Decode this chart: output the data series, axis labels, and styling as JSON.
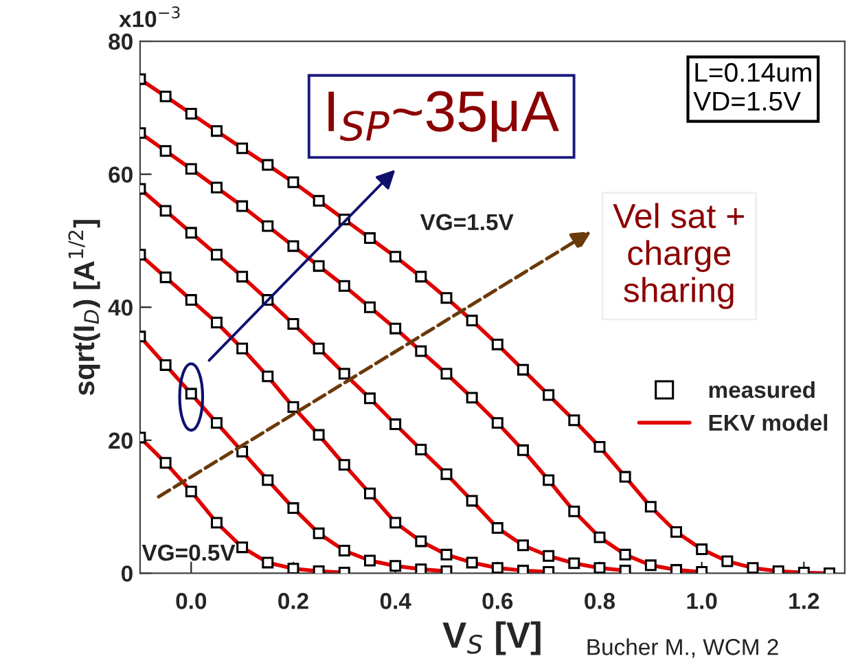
{
  "chart_data": {
    "type": "scatter",
    "xlabel": "V$_{S}$ [V]",
    "ylabel": "sqrt(I$_{D}$) [A$^{1/2}$]",
    "x": [
      -0.1,
      -0.05,
      0,
      0.05,
      0.1,
      0.15,
      0.2,
      0.25,
      0.3,
      0.35,
      0.4,
      0.45,
      0.5,
      0.55,
      0.6,
      0.65,
      0.7,
      0.75,
      0.8,
      0.85,
      0.9,
      0.95,
      1.0,
      1.05,
      1.1,
      1.15,
      1.2,
      1.25
    ],
    "series": [
      {
        "name": "measured",
        "color": "#000000",
        "marker": "square",
        "values": [
          74.3,
          71.7,
          69.1,
          66.5,
          63.9,
          61.4,
          58.8,
          56,
          53.2,
          50.4,
          47.6,
          44.6,
          41.4,
          38,
          34.4,
          30.6,
          26.8,
          23,
          19,
          14.5,
          10,
          6.2,
          3.6,
          1.8,
          0.8,
          0.3,
          0.1,
          0
        ]
      },
      {
        "color": "#000000",
        "marker": "square",
        "values": [
          66.2,
          63.5,
          60.8,
          58,
          55.2,
          52.2,
          49.2,
          46.2,
          43.2,
          40,
          36.8,
          33.4,
          30,
          26.4,
          22.6,
          18.5,
          14,
          9.3,
          5.4,
          2.8,
          1.2,
          0.5,
          0.2,
          null,
          null,
          null,
          null,
          null
        ]
      },
      {
        "color": "#000000",
        "marker": "square",
        "values": [
          57.8,
          54.5,
          51.2,
          47.9,
          44.6,
          41.1,
          37.5,
          33.8,
          30,
          26.3,
          22.4,
          18.6,
          14.9,
          10.9,
          6.8,
          4.2,
          2.6,
          1.5,
          0.8,
          0.4,
          null,
          null,
          null,
          null,
          null,
          null,
          null,
          null
        ]
      },
      {
        "color": "#000000",
        "marker": "square",
        "values": [
          47.9,
          44.5,
          41.1,
          37.7,
          33.8,
          29.6,
          25,
          20.8,
          16.3,
          12,
          7.6,
          4.8,
          2.8,
          1.6,
          0.8,
          0.4,
          0.2,
          null,
          null,
          null,
          null,
          null,
          null,
          null,
          null,
          null,
          null,
          null
        ]
      },
      {
        "color": "#000000",
        "marker": "square",
        "values": [
          35.6,
          31.3,
          27,
          22.6,
          18.3,
          14,
          9.8,
          6,
          3.4,
          1.9,
          1.1,
          0.6,
          0.3,
          null,
          null,
          null,
          null,
          null,
          null,
          null,
          null,
          null,
          null,
          null,
          null,
          null,
          null,
          null
        ]
      },
      {
        "color": "#000000",
        "marker": "square",
        "values": [
          20.4,
          16.6,
          12.3,
          7.6,
          3.9,
          1.6,
          0.7,
          0.3,
          0.1,
          null,
          null,
          null,
          null,
          null,
          null,
          null,
          null,
          null,
          null,
          null,
          null,
          null,
          null,
          null,
          null,
          null,
          null,
          null
        ]
      },
      {
        "type": "line",
        "name": "EKV model",
        "color": "#e00000",
        "values": [
          74.3,
          71.7,
          69.1,
          66.5,
          63.9,
          61.4,
          58.8,
          56,
          53.2,
          50.4,
          47.6,
          44.6,
          41.4,
          38,
          34.4,
          30.6,
          26.8,
          23,
          19,
          14.5,
          10,
          6.2,
          3.6,
          1.8,
          0.8,
          0.3,
          0.1,
          0
        ]
      },
      {
        "type": "line",
        "color": "#e00000",
        "values": [
          66.2,
          63.5,
          60.8,
          58,
          55.2,
          52.2,
          49.2,
          46.2,
          43.2,
          40,
          36.8,
          33.4,
          30,
          26.4,
          22.6,
          18.5,
          14,
          9.3,
          5.4,
          2.8,
          1.2,
          0.5,
          0.2,
          null,
          null,
          null,
          null,
          null
        ]
      },
      {
        "type": "line",
        "color": "#e00000",
        "values": [
          57.8,
          54.5,
          51.2,
          47.9,
          44.6,
          41.1,
          37.5,
          33.8,
          30,
          26.3,
          22.4,
          18.6,
          14.9,
          10.9,
          6.8,
          4.2,
          2.6,
          1.5,
          0.8,
          0.4,
          null,
          null,
          null,
          null,
          null,
          null,
          null,
          null
        ]
      },
      {
        "type": "line",
        "color": "#e00000",
        "values": [
          47.9,
          44.5,
          41.1,
          37.7,
          33.8,
          29.6,
          25,
          20.8,
          16.3,
          12,
          7.6,
          4.8,
          2.8,
          1.6,
          0.8,
          0.4,
          0.2,
          null,
          null,
          null,
          null,
          null,
          null,
          null,
          null,
          null,
          null,
          null
        ]
      },
      {
        "type": "line",
        "color": "#e00000",
        "values": [
          35.6,
          31.3,
          27,
          22.6,
          18.3,
          14,
          9.8,
          6,
          3.4,
          1.9,
          1.1,
          0.6,
          0.3,
          null,
          null,
          null,
          null,
          null,
          null,
          null,
          null,
          null,
          null,
          null,
          null,
          null,
          null,
          null
        ]
      },
      {
        "type": "line",
        "color": "#e00000",
        "values": [
          20.4,
          16.6,
          12.3,
          7.6,
          3.9,
          1.6,
          0.7,
          0.3,
          0.1,
          null,
          null,
          null,
          null,
          null,
          null,
          null,
          null,
          null,
          null,
          null,
          null,
          null,
          null,
          null,
          null,
          null,
          null,
          null
        ]
      }
    ],
    "xlim": [
      -0.1,
      1.28
    ],
    "xticks": [
      {
        "value": 0,
        "label": "0.0"
      },
      0.2,
      0.4,
      0.6,
      0.8,
      {
        "value": 1,
        "label": "1.0"
      },
      1.2
    ],
    "ylim": [
      0,
      80
    ],
    "yticks": [
      0,
      20,
      40,
      60,
      80
    ],
    "grid": false,
    "legend": "right",
    "annotations": [
      "I$_{SP}$~35μA",
      "L=0.14um\nVD=1.5V",
      "Vel sat +\ncharge\nsharing",
      "VG=1.5V",
      "VG=0.5V",
      "x10$^{−3}$",
      "Bucher M., WCM 2"
    ]
  }
}
